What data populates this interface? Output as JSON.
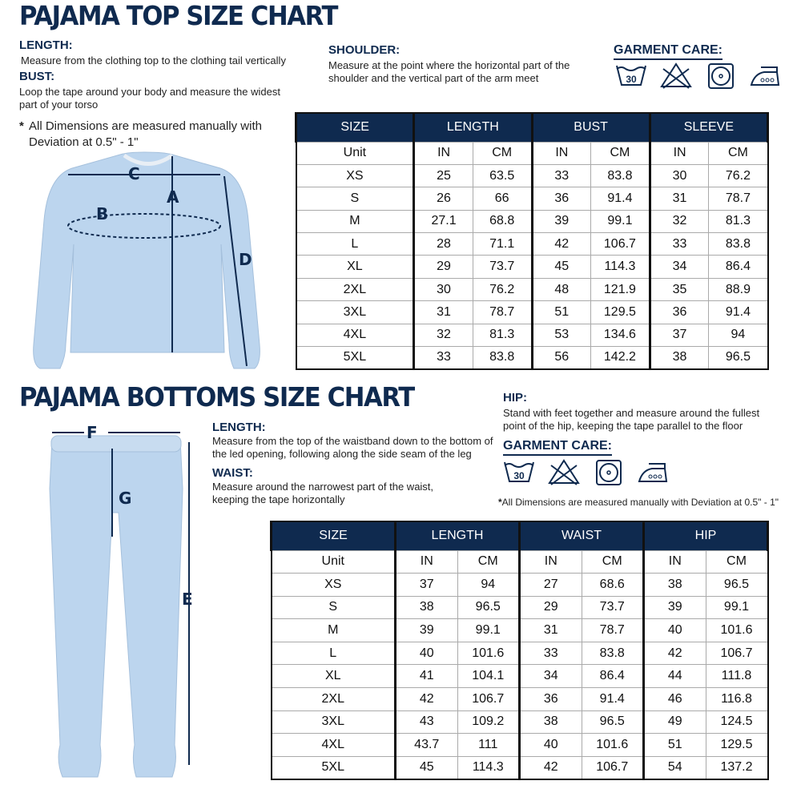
{
  "top": {
    "title": "PAJAMA TOP SIZE CHART",
    "length_label": "LENGTH:",
    "length_text": "Measure from the clothing top to the clothing tail vertically",
    "bust_label": "BUST:",
    "bust_text": "Loop the tape around your body and measure the widest part of your torso",
    "note_star": "*",
    "note_text": "All Dimensions are measured manually with Deviation at 0.5\" - 1\"",
    "shoulder_label": "SHOULDER:",
    "shoulder_text": "Measure at the point where the horizontal part of the shoulder and the vertical part of the arm meet",
    "care_label": "GARMENT CARE:",
    "care_icons": [
      "wash-30-icon",
      "no-bleach-icon",
      "tumble-dry-icon",
      "iron-high-icon"
    ],
    "wash_temp": "30",
    "diagram_letters": {
      "a": "A",
      "b": "B",
      "c": "C",
      "d": "D"
    },
    "table": {
      "headers": [
        "SIZE",
        "LENGTH",
        "BUST",
        "SLEEVE"
      ],
      "units": [
        "Unit",
        "IN",
        "CM",
        "IN",
        "CM",
        "IN",
        "CM"
      ],
      "rows": [
        [
          "XS",
          "25",
          "63.5",
          "33",
          "83.8",
          "30",
          "76.2"
        ],
        [
          "S",
          "26",
          "66",
          "36",
          "91.4",
          "31",
          "78.7"
        ],
        [
          "M",
          "27.1",
          "68.8",
          "39",
          "99.1",
          "32",
          "81.3"
        ],
        [
          "L",
          "28",
          "71.1",
          "42",
          "106.7",
          "33",
          "83.8"
        ],
        [
          "XL",
          "29",
          "73.7",
          "45",
          "114.3",
          "34",
          "86.4"
        ],
        [
          "2XL",
          "30",
          "76.2",
          "48",
          "121.9",
          "35",
          "88.9"
        ],
        [
          "3XL",
          "31",
          "78.7",
          "51",
          "129.5",
          "36",
          "91.4"
        ],
        [
          "4XL",
          "32",
          "81.3",
          "53",
          "134.6",
          "37",
          "94"
        ],
        [
          "5XL",
          "33",
          "83.8",
          "56",
          "142.2",
          "38",
          "96.5"
        ]
      ]
    }
  },
  "bottom": {
    "title": "PAJAMA BOTTOMS SIZE CHART",
    "length_label": "LENGTH:",
    "length_text": "Measure from the top of the waistband down to the bottom of the led opening, following along the side seam of the leg",
    "waist_label": "WAIST:",
    "waist_text": "Measure around the narrowest part of the waist, keeping the tape horizontally",
    "hip_label": "HIP:",
    "hip_text": "Stand with feet together and measure around the fullest point of the hip, keeping the tape parallel to the floor",
    "care_label": "GARMENT CARE:",
    "care_icons": [
      "wash-30-icon",
      "no-bleach-icon",
      "tumble-dry-icon",
      "iron-high-icon"
    ],
    "wash_temp": "30",
    "note_star": "*",
    "note_text": "All Dimensions are measured manually with Deviation at 0.5\" - 1\"",
    "diagram_letters": {
      "e": "E",
      "f": "F",
      "g": "G"
    },
    "table": {
      "headers": [
        "SIZE",
        "LENGTH",
        "WAIST",
        "HIP"
      ],
      "units": [
        "Unit",
        "IN",
        "CM",
        "IN",
        "CM",
        "IN",
        "CM"
      ],
      "rows": [
        [
          "XS",
          "37",
          "94",
          "27",
          "68.6",
          "38",
          "96.5"
        ],
        [
          "S",
          "38",
          "96.5",
          "29",
          "73.7",
          "39",
          "99.1"
        ],
        [
          "M",
          "39",
          "99.1",
          "31",
          "78.7",
          "40",
          "101.6"
        ],
        [
          "L",
          "40",
          "101.6",
          "33",
          "83.8",
          "42",
          "106.7"
        ],
        [
          "XL",
          "41",
          "104.1",
          "34",
          "86.4",
          "44",
          "111.8"
        ],
        [
          "2XL",
          "42",
          "106.7",
          "36",
          "91.4",
          "46",
          "116.8"
        ],
        [
          "3XL",
          "43",
          "109.2",
          "38",
          "96.5",
          "49",
          "124.5"
        ],
        [
          "4XL",
          "43.7",
          "111",
          "40",
          "101.6",
          "51",
          "129.5"
        ],
        [
          "5XL",
          "45",
          "114.3",
          "42",
          "106.7",
          "54",
          "137.2"
        ]
      ]
    }
  },
  "colors": {
    "navy": "#0f2a4f",
    "garment": "#bcd5ee"
  }
}
